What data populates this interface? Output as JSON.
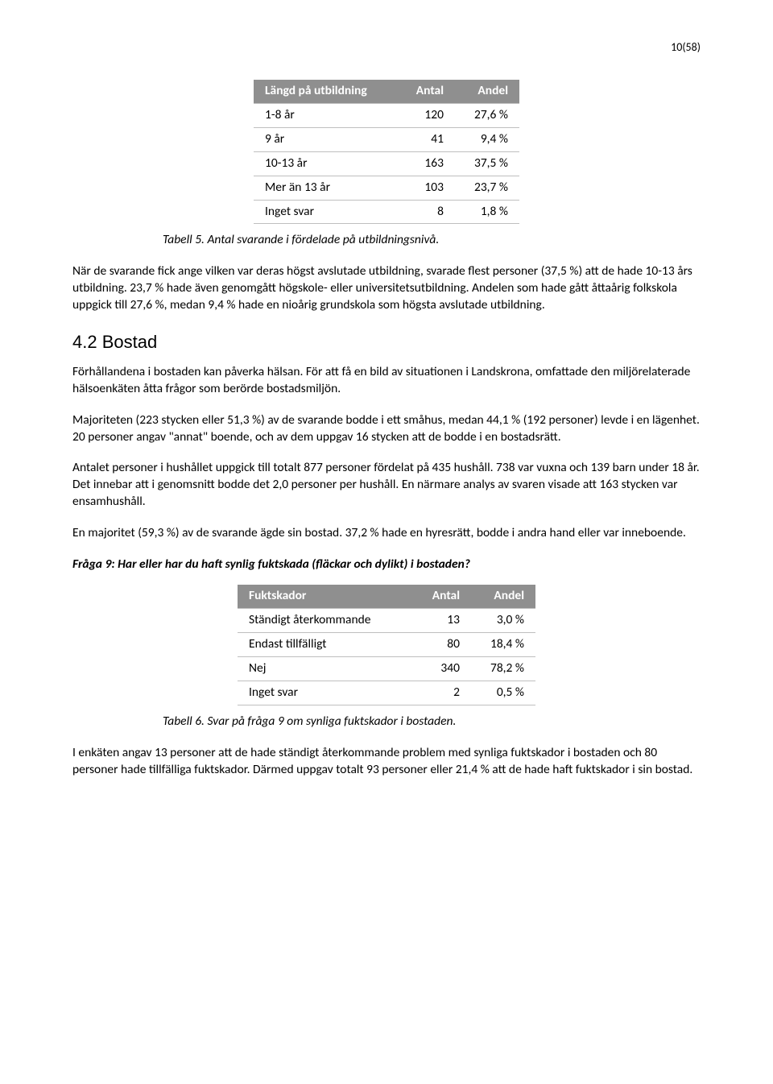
{
  "pageNumber": "10(58)",
  "table1": {
    "headers": [
      "Längd på utbildning",
      "Antal",
      "Andel"
    ],
    "rows": [
      [
        "1-8 år",
        "120",
        "27,6 %"
      ],
      [
        "9 år",
        "41",
        "9,4 %"
      ],
      [
        "10-13 år",
        "163",
        "37,5 %"
      ],
      [
        "Mer än 13 år",
        "103",
        "23,7 %"
      ],
      [
        "Inget svar",
        "8",
        "1,8 %"
      ]
    ],
    "caption": "Tabell 5. Antal svarande i fördelade på utbildningsnivå."
  },
  "para1": "När de svarande fick ange vilken var deras högst avslutade utbildning, svarade flest personer (37,5 %) att de hade 10-13 års utbildning. 23,7 % hade även genomgått högskole- eller universitetsutbildning. Andelen som hade gått åttaårig folkskola uppgick till 27,6 %, medan 9,4 % hade en nioårig grundskola som högsta avslutade utbildning.",
  "sectionTitle": "4.2 Bostad",
  "para2": "Förhållandena i bostaden kan påverka hälsan. För att få en bild av situationen i Landskrona, omfattade den miljörelaterade hälsoenkäten åtta frågor som berörde bostadsmiljön.",
  "para3": "Majoriteten (223 stycken eller 51,3 %) av de svarande bodde i ett småhus, medan 44,1 % (192 personer) levde i en lägenhet. 20 personer angav \"annat\" boende, och av dem uppgav 16 stycken att de bodde i en bostadsrätt.",
  "para4": "Antalet personer i hushållet uppgick till totalt 877 personer fördelat på 435 hushåll. 738 var vuxna och 139 barn under 18 år. Det innebar att i genomsnitt bodde det 2,0 personer per hushåll. En närmare analys av svaren visade att 163 stycken var ensamhushåll.",
  "para5": "En majoritet (59,3 %) av de svarande ägde sin bostad. 37,2 % hade en hyresrätt, bodde i andra hand eller var inneboende.",
  "question9": "Fråga 9: Har eller har du haft synlig fuktskada (fläckar och dylikt) i bostaden?",
  "table2": {
    "headers": [
      "Fuktskador",
      "Antal",
      "Andel"
    ],
    "rows": [
      [
        "Ständigt återkommande",
        "13",
        "3,0 %"
      ],
      [
        "Endast tillfälligt",
        "80",
        "18,4 %"
      ],
      [
        "Nej",
        "340",
        "78,2 %"
      ],
      [
        "Inget svar",
        "2",
        "0,5 %"
      ]
    ],
    "caption": "Tabell 6. Svar på fråga 9 om synliga fuktskador i bostaden."
  },
  "para6": "I enkäten angav 13 personer att de hade ständigt återkommande problem med synliga fuktskador i bostaden och 80 personer hade tillfälliga fuktskador. Därmed uppgav totalt 93 personer eller 21,4 % att de hade haft fuktskador i sin bostad."
}
